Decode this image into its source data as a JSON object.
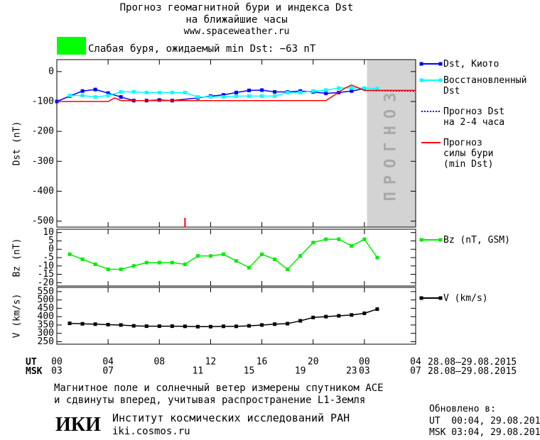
{
  "header": {
    "title": [
      "Прогноз геомагнитной бури и индекса Dst",
      "на ближайшие часы",
      "www.spaceweather.ru"
    ],
    "status": "Слабая буря, ожидаемый min Dst: −63 nT",
    "status_color": "#00ff00"
  },
  "chart_data": [
    {
      "type": "line",
      "ylabel": "Dst (nT)",
      "xlim": [
        0,
        28
      ],
      "ylim": [
        -520,
        40
      ],
      "yticks": [
        0,
        -100,
        -200,
        -300,
        -400,
        -500
      ],
      "forecast_span": [
        24.2,
        28
      ],
      "forecast_label": "ПРОГНОЗ",
      "marker_x": 10,
      "series": [
        {
          "name": "Dst, Киото",
          "color": "#0000ff",
          "marker": "square",
          "x": [
            0,
            1,
            2,
            3,
            4,
            5,
            6,
            7,
            8,
            9,
            11,
            12,
            13,
            14,
            15,
            16,
            17,
            18,
            19,
            20,
            21,
            22,
            23,
            24
          ],
          "values": [
            -100,
            -82,
            -65,
            -60,
            -72,
            -85,
            -97,
            -97,
            -95,
            -97,
            -88,
            -82,
            -78,
            -70,
            -63,
            -62,
            -68,
            -68,
            -65,
            -68,
            -73,
            -70,
            -65,
            -57
          ]
        },
        {
          "name": "Восстановленный\nDst",
          "color": "#00ffff",
          "marker": "square",
          "x": [
            1,
            2,
            3,
            4,
            5,
            6,
            7,
            8,
            9,
            10,
            11,
            12,
            13,
            14,
            15,
            16,
            17,
            18,
            19,
            20,
            21,
            22,
            23,
            24,
            25
          ],
          "values": [
            -80,
            -80,
            -85,
            -80,
            -68,
            -68,
            -70,
            -70,
            -70,
            -70,
            -85,
            -85,
            -85,
            -82,
            -82,
            -82,
            -82,
            -70,
            -70,
            -65,
            -62,
            -55,
            -55,
            -55,
            -57
          ]
        },
        {
          "name": "Прогноз Dst\nна 2-4 часа",
          "color": "#0000ff",
          "dash": true,
          "x": [
            24,
            28
          ],
          "values": [
            -63,
            -65
          ]
        },
        {
          "name": "Прогноз\nсилы бури\n(min Dst)",
          "color": "#ff0000",
          "x": [
            0,
            4,
            4.5,
            5,
            21,
            22.5,
            23,
            24,
            28
          ],
          "values": [
            -100,
            -100,
            -88,
            -97,
            -97,
            -55,
            -45,
            -63,
            -63
          ]
        }
      ]
    },
    {
      "type": "line",
      "ylabel": "Bz (nT)",
      "xlim": [
        0,
        28
      ],
      "ylim": [
        -22,
        12
      ],
      "yticks": [
        10,
        5,
        0,
        -5,
        -10,
        -15,
        -20
      ],
      "series": [
        {
          "name": "Bz (nT, GSM)",
          "color": "#00ee00",
          "marker": "square",
          "x": [
            1,
            2,
            3,
            4,
            5,
            6,
            7,
            8,
            9,
            10,
            11,
            12,
            13,
            14,
            15,
            16,
            17,
            18,
            19,
            20,
            21,
            22,
            23,
            24,
            25
          ],
          "values": [
            -3,
            -6,
            -9,
            -12,
            -12,
            -10,
            -8,
            -8,
            -8,
            -9,
            -4,
            -4,
            -3,
            -7,
            -11,
            -3,
            -6,
            -12,
            -4,
            4,
            6,
            6,
            2,
            6,
            -5
          ]
        }
      ]
    },
    {
      "type": "line",
      "ylabel": "V (km/s)",
      "xlim": [
        0,
        28
      ],
      "ylim": [
        235,
        575
      ],
      "yticks": [
        550,
        500,
        450,
        400,
        350,
        300,
        250
      ],
      "xticks": [
        {
          "value": 0,
          "label": "00"
        },
        {
          "value": 4,
          "label": "04"
        },
        {
          "value": 8,
          "label": "08"
        },
        12,
        16,
        20,
        {
          "value": 24,
          "label": "00"
        },
        {
          "value": 28,
          "label": "04"
        }
      ],
      "x2ticks": [
        {
          "value": 0,
          "label": "03"
        },
        {
          "value": 4,
          "label": "07"
        },
        11,
        15,
        19,
        23,
        {
          "value": 24,
          "label": "03"
        },
        {
          "value": 28,
          "label": "07"
        }
      ],
      "series": [
        {
          "name": "V (km/s)",
          "color": "#000000",
          "marker": "square",
          "x": [
            1,
            2,
            3,
            4,
            5,
            6,
            7,
            8,
            9,
            10,
            11,
            12,
            13,
            14,
            15,
            16,
            17,
            18,
            19,
            20,
            21,
            22,
            23,
            24,
            25
          ],
          "values": [
            360,
            357,
            355,
            352,
            350,
            345,
            343,
            343,
            343,
            342,
            340,
            340,
            342,
            342,
            345,
            350,
            355,
            358,
            375,
            395,
            400,
            405,
            410,
            420,
            445
          ]
        }
      ]
    }
  ],
  "time_axis": {
    "ut_label": "UT",
    "msk_label": "MSK",
    "ut_dates": "28.08–29.08.2015",
    "msk_dates": "28.08–29.08.2015"
  },
  "footer": {
    "note": [
      "Магнитное поле и солнечный ветер измерены спутником ACE",
      "и сдвинуты вперед, учитывая распространение L1-Земля"
    ],
    "logo": "ИКИ",
    "institute": "Институт космических исследований РАН",
    "site": "iki.cosmos.ru",
    "updated": [
      "Обновлено в:",
      "UT  00:04, 29.08.2015",
      "MSK 03:04, 29.08.2015"
    ]
  }
}
